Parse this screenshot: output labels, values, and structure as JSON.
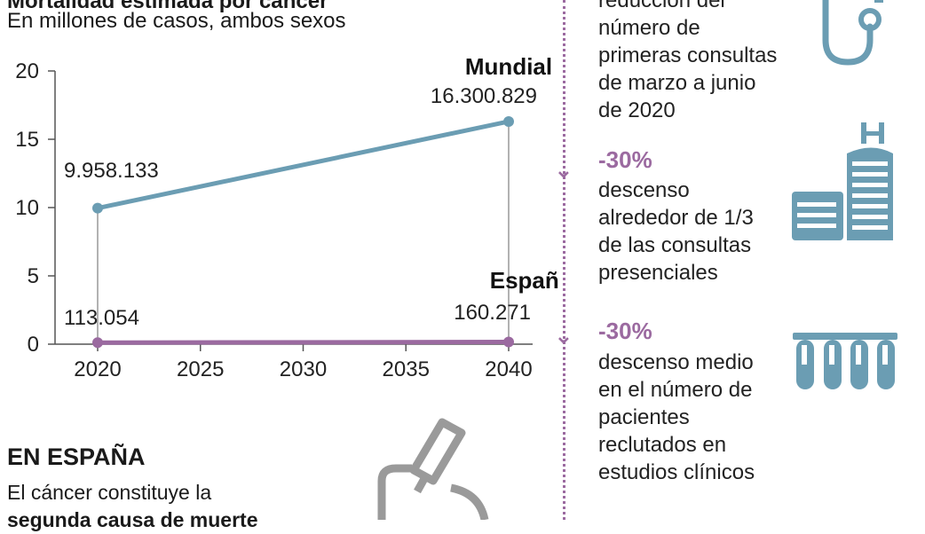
{
  "chart_data": {
    "type": "line",
    "title": "Mortalidad estimada por cáncer",
    "subtitle": "En millones de casos, ambos sexos",
    "x": [
      2020,
      2040
    ],
    "xticks": [
      "2020",
      "2025",
      "2030",
      "2035",
      "2040"
    ],
    "xlim": [
      2020,
      2040
    ],
    "yticks": [
      "20",
      "15",
      "10",
      "5",
      "0"
    ],
    "ylim": [
      0,
      20
    ],
    "series": [
      {
        "name": "Mundial",
        "values": [
          9.958133,
          16.300829
        ],
        "labels": [
          "9.958.133",
          "16.300.829"
        ],
        "color": "#6b9db3"
      },
      {
        "name": "España",
        "values": [
          0.113054,
          0.160271
        ],
        "labels": [
          "113.054",
          "160.271"
        ],
        "color": "#9b6aa0"
      }
    ],
    "grid": false
  },
  "right_panel": {
    "stat1": {
      "lines": [
        "reducción del",
        "número de",
        "primeras consultas",
        "de marzo a junio",
        "de 2020"
      ],
      "icon": "stethoscope-icon"
    },
    "stat2": {
      "pct": "-30%",
      "lines": [
        "descenso",
        "alrededor de 1/3",
        "de las consultas",
        "presenciales"
      ],
      "icon": "hospital-icon"
    },
    "stat3": {
      "pct": "-30%",
      "lines": [
        "descenso medio",
        "en el número de",
        "pacientes",
        "reclutados en",
        "estudios clínicos"
      ],
      "icon": "test-tubes-icon"
    }
  },
  "espana_section": {
    "heading": "EN ESPAÑA",
    "line1": "El cáncer constituye la",
    "line2": "segunda causa de muerte",
    "icon": "microscope-icon"
  },
  "colors": {
    "mundial": "#6b9db3",
    "espana": "#9b6aa0",
    "icon": "#6b9db3",
    "icon_gray": "#9a9a9a"
  }
}
